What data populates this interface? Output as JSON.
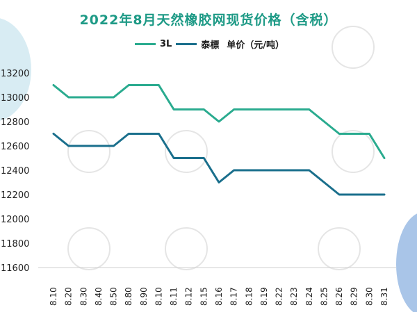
{
  "chart_data": {
    "type": "line",
    "title": "2022年8月天然橡胶网现货价格（含税）",
    "unit_label": "单价（元/吨）",
    "categories": [
      "8.10",
      "8.20",
      "8.30",
      "8.40",
      "8.50",
      "8.80",
      "8.90",
      "8.10",
      "8.11",
      "8.12",
      "8.15",
      "8.16",
      "8.17",
      "8.18",
      "8.19",
      "8.22",
      "8.23",
      "8.24",
      "8.25",
      "8.26",
      "8.29",
      "8.30",
      "8.31"
    ],
    "series": [
      {
        "name": "3L",
        "color": "#2aab8f",
        "values": [
          13100,
          13000,
          13000,
          13000,
          13000,
          13100,
          13100,
          13100,
          12900,
          12900,
          12900,
          12800,
          12900,
          12900,
          12900,
          12900,
          12900,
          12900,
          12800,
          12700,
          12700,
          12700,
          12500
        ]
      },
      {
        "name": "泰標",
        "color": "#1a6f8c",
        "values": [
          12700,
          12600,
          12600,
          12600,
          12600,
          12700,
          12700,
          12700,
          12500,
          12500,
          12500,
          12300,
          12400,
          12400,
          12400,
          12400,
          12400,
          12400,
          12300,
          12200,
          12200,
          12200,
          12200
        ]
      }
    ],
    "yticks": [
      11600,
      11800,
      12000,
      12200,
      12400,
      12600,
      12800,
      13000,
      13200
    ],
    "ylim": [
      11600,
      13200
    ],
    "xlabel": "",
    "ylabel": ""
  }
}
